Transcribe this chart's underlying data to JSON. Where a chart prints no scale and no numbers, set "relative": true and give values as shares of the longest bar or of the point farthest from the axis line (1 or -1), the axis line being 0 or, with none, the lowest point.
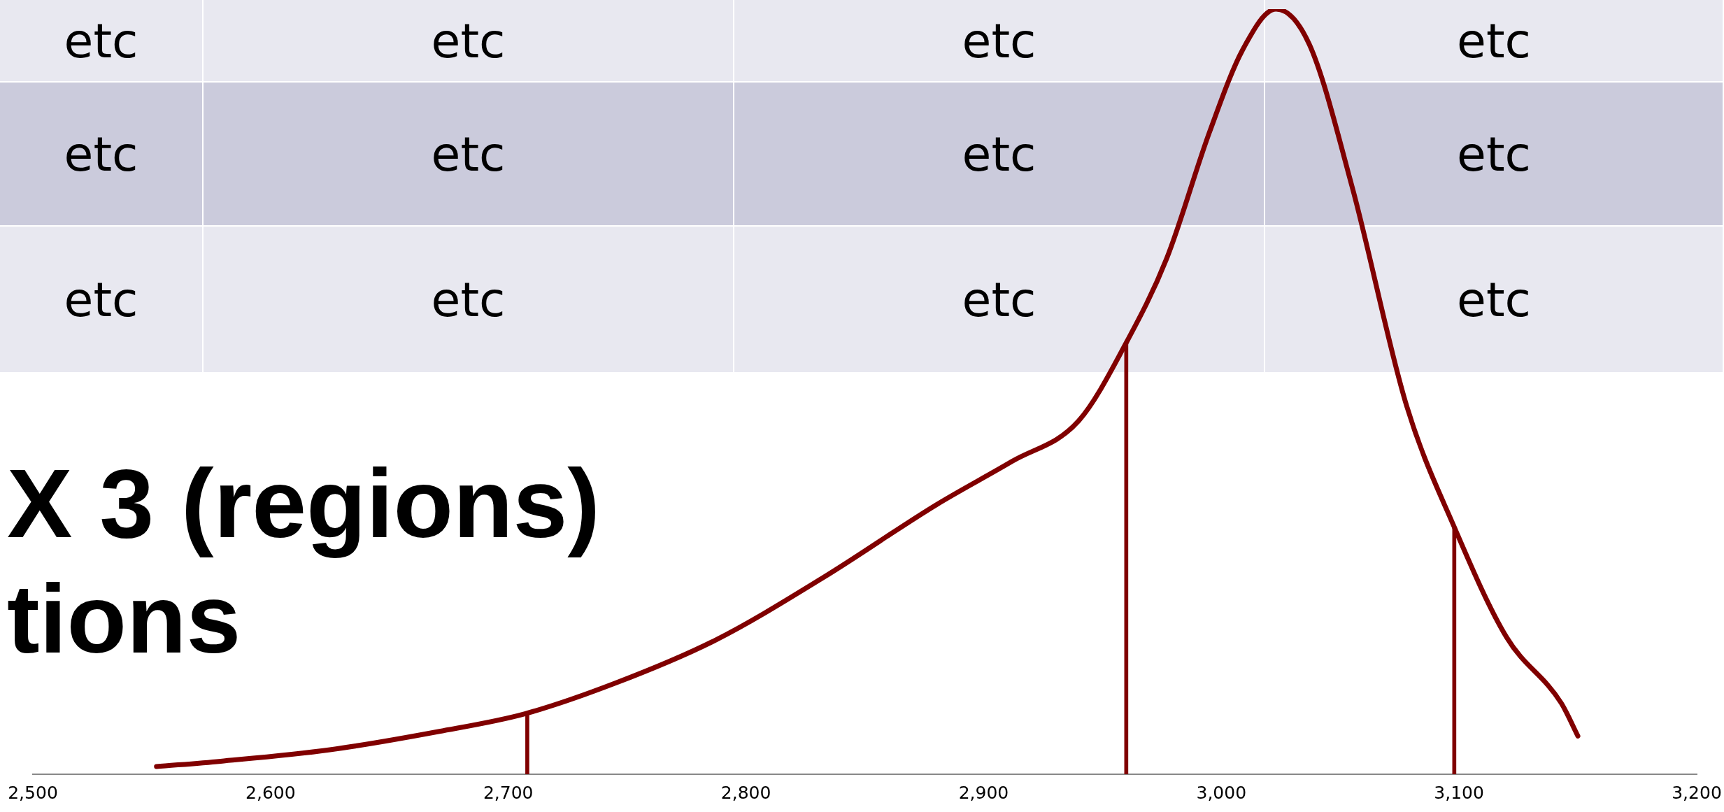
{
  "chart_data": {
    "type": "line",
    "relative": true,
    "grid": false,
    "legend": false,
    "marker": "none",
    "xlim": [
      2500,
      3200
    ],
    "xticks": [
      {
        "value": 2500,
        "label": "2,500"
      },
      {
        "value": 2600,
        "label": "2,600"
      },
      {
        "value": 2700,
        "label": "2,700"
      },
      {
        "value": 2800,
        "label": "2,800"
      },
      {
        "value": 2900,
        "label": "2,900"
      },
      {
        "value": 3000,
        "label": "3,000"
      },
      {
        "value": 3100,
        "label": "3,100"
      },
      {
        "value": 3200,
        "label": "3,200"
      }
    ],
    "annotations": [
      "etc",
      "etc",
      "etc",
      "etc",
      "etc",
      "etc",
      "etc",
      "etc",
      "etc",
      "etc",
      "etc",
      "etc",
      "X 3 (regions)",
      "tions"
    ],
    "series": [
      {
        "color": "#800000",
        "x": [
          2552,
          2579,
          2625,
          2671,
          2707,
          2745,
          2787,
          2833,
          2880,
          2912,
          2940,
          2960,
          2977,
          2995,
          3009,
          3023,
          3037,
          3055,
          3078,
          3098,
          3120,
          3143,
          3150
        ],
        "values": [
          0.01,
          0.017,
          0.032,
          0.056,
          0.079,
          0.119,
          0.175,
          0.258,
          0.352,
          0.409,
          0.462,
          0.564,
          0.674,
          0.839,
          0.947,
          1.0,
          0.954,
          0.768,
          0.481,
          0.323,
          0.179,
          0.093,
          0.05
        ]
      },
      {
        "type": "bar",
        "color": "#800000",
        "x": [
          2708,
          2960,
          3098
        ],
        "values": [
          0.079,
          0.564,
          0.323
        ]
      }
    ]
  }
}
